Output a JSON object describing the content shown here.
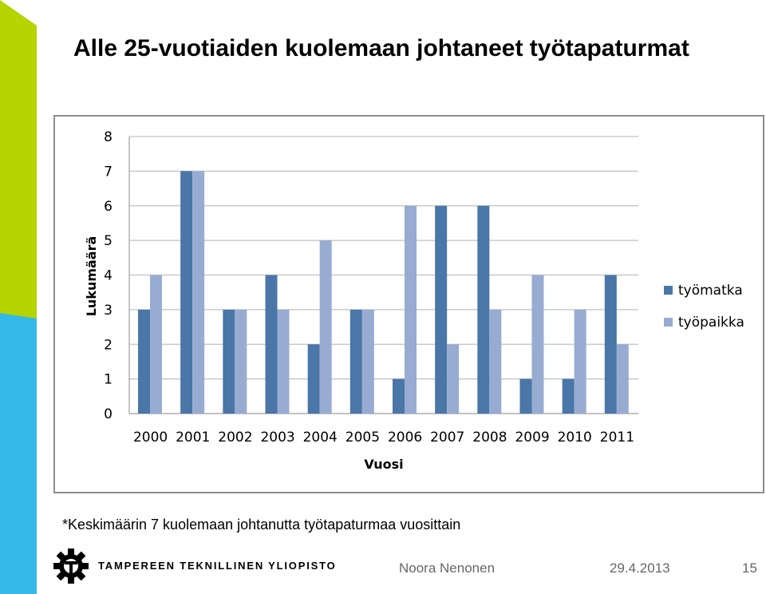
{
  "slide": {
    "title": "Alle 25-vuotiaiden kuolemaan johtaneet työtapaturmat",
    "footnote": "*Keskimäärin 7 kuolemaan johtanutta työtapaturmaa vuosittain",
    "logo_text": "TAMPEREEN TEKNILLINEN YLIOPISTO",
    "author": "Noora Nenonen",
    "date": "29.4.2013",
    "page_number": "15"
  },
  "colors": {
    "series1": "#4a76a8",
    "series2": "#98acd2",
    "gridline": "#c0c0c0",
    "stripe_green": "#b5d400",
    "stripe_blue": "#33b8e8"
  },
  "chart_data": {
    "type": "bar",
    "categories": [
      "2000",
      "2001",
      "2002",
      "2003",
      "2004",
      "2005",
      "2006",
      "2007",
      "2008",
      "2009",
      "2010",
      "2011"
    ],
    "series": [
      {
        "name": "työmatka",
        "values": [
          3,
          7,
          3,
          4,
          2,
          3,
          1,
          6,
          6,
          1,
          1,
          4
        ]
      },
      {
        "name": "työpaikka",
        "values": [
          4,
          7,
          3,
          3,
          5,
          3,
          6,
          2,
          3,
          4,
          3,
          2
        ]
      }
    ],
    "xlabel": "Vuosi",
    "ylabel": "Lukumäärä",
    "ylim": [
      0,
      8
    ],
    "yticks": [
      "0",
      "1",
      "2",
      "3",
      "4",
      "5",
      "6",
      "7",
      "8"
    ],
    "grid": true,
    "legend": "right"
  }
}
